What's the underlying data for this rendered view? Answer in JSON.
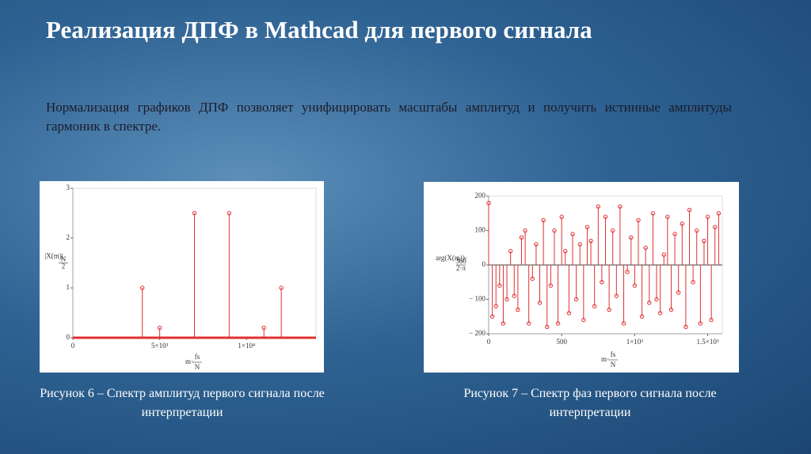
{
  "title": "Реализация ДПФ в Mathcad для первого сигнала",
  "paragraph": "Нормализация графиков ДПФ позволяет унифицировать масштабы амплитуд и получить истинные амплитуды гармоник в спектре.",
  "chart_data": [
    {
      "type": "stem",
      "color": "#e03030",
      "caption": "Рисунок 6 – Спектр амплитуд первого сигнала после интерпретации",
      "y_label": [
        "|X(m)|",
        "N",
        "2"
      ],
      "x_label": [
        "m·",
        "fs",
        "N"
      ],
      "x": [
        4000,
        5000,
        7000,
        9000,
        11000,
        12000
      ],
      "values": [
        1,
        0.2,
        2.5,
        2.5,
        0.2,
        1
      ],
      "xlim": [
        0,
        14000
      ],
      "xticks": [
        0,
        {
          "value": 5000,
          "label": "5×10³"
        },
        {
          "value": 10000,
          "label": "1×10⁴"
        }
      ],
      "ylim": [
        0,
        3
      ],
      "yticks": [
        0,
        1,
        2,
        3
      ]
    },
    {
      "type": "stem",
      "color": "#e03030",
      "caption": "Рисунок 7 – Спектр фаз первого сигнала после интерпретации",
      "y_label": [
        "arg(X(m))·",
        "360",
        "2·π"
      ],
      "x_label": [
        "m·",
        "fs",
        "N"
      ],
      "x": [
        0,
        25,
        50,
        75,
        100,
        125,
        150,
        175,
        200,
        225,
        250,
        275,
        300,
        325,
        350,
        375,
        400,
        425,
        450,
        475,
        500,
        525,
        550,
        575,
        600,
        625,
        650,
        675,
        700,
        725,
        750,
        775,
        800,
        825,
        850,
        875,
        900,
        925,
        950,
        975,
        1000,
        1025,
        1050,
        1075,
        1100,
        1125,
        1150,
        1175,
        1200,
        1225,
        1250,
        1275,
        1300,
        1325,
        1350,
        1375,
        1400,
        1425,
        1450,
        1475,
        1500,
        1525,
        1550,
        1575
      ],
      "values": [
        180,
        -150,
        -120,
        -60,
        -170,
        -100,
        40,
        -90,
        -130,
        80,
        100,
        -170,
        -40,
        60,
        -110,
        130,
        -180,
        -60,
        100,
        -170,
        140,
        40,
        -140,
        90,
        -100,
        60,
        -160,
        110,
        70,
        -120,
        170,
        -50,
        140,
        -130,
        100,
        -90,
        170,
        -170,
        -20,
        80,
        -60,
        130,
        -150,
        50,
        -110,
        150,
        -100,
        -140,
        30,
        140,
        -130,
        90,
        -80,
        120,
        -180,
        160,
        -50,
        100,
        -170,
        70,
        140,
        -160,
        110,
        150
      ],
      "xlim": [
        0,
        1600
      ],
      "xticks": [
        0,
        500,
        {
          "value": 1000,
          "label": "1×10³"
        },
        {
          "value": 1500,
          "label": "1.5×10³"
        }
      ],
      "ylim": [
        -200,
        200
      ],
      "yticks": [
        {
          "value": -200,
          "label": "− 200"
        },
        {
          "value": -100,
          "label": "− 100"
        },
        0,
        100,
        200
      ]
    }
  ]
}
